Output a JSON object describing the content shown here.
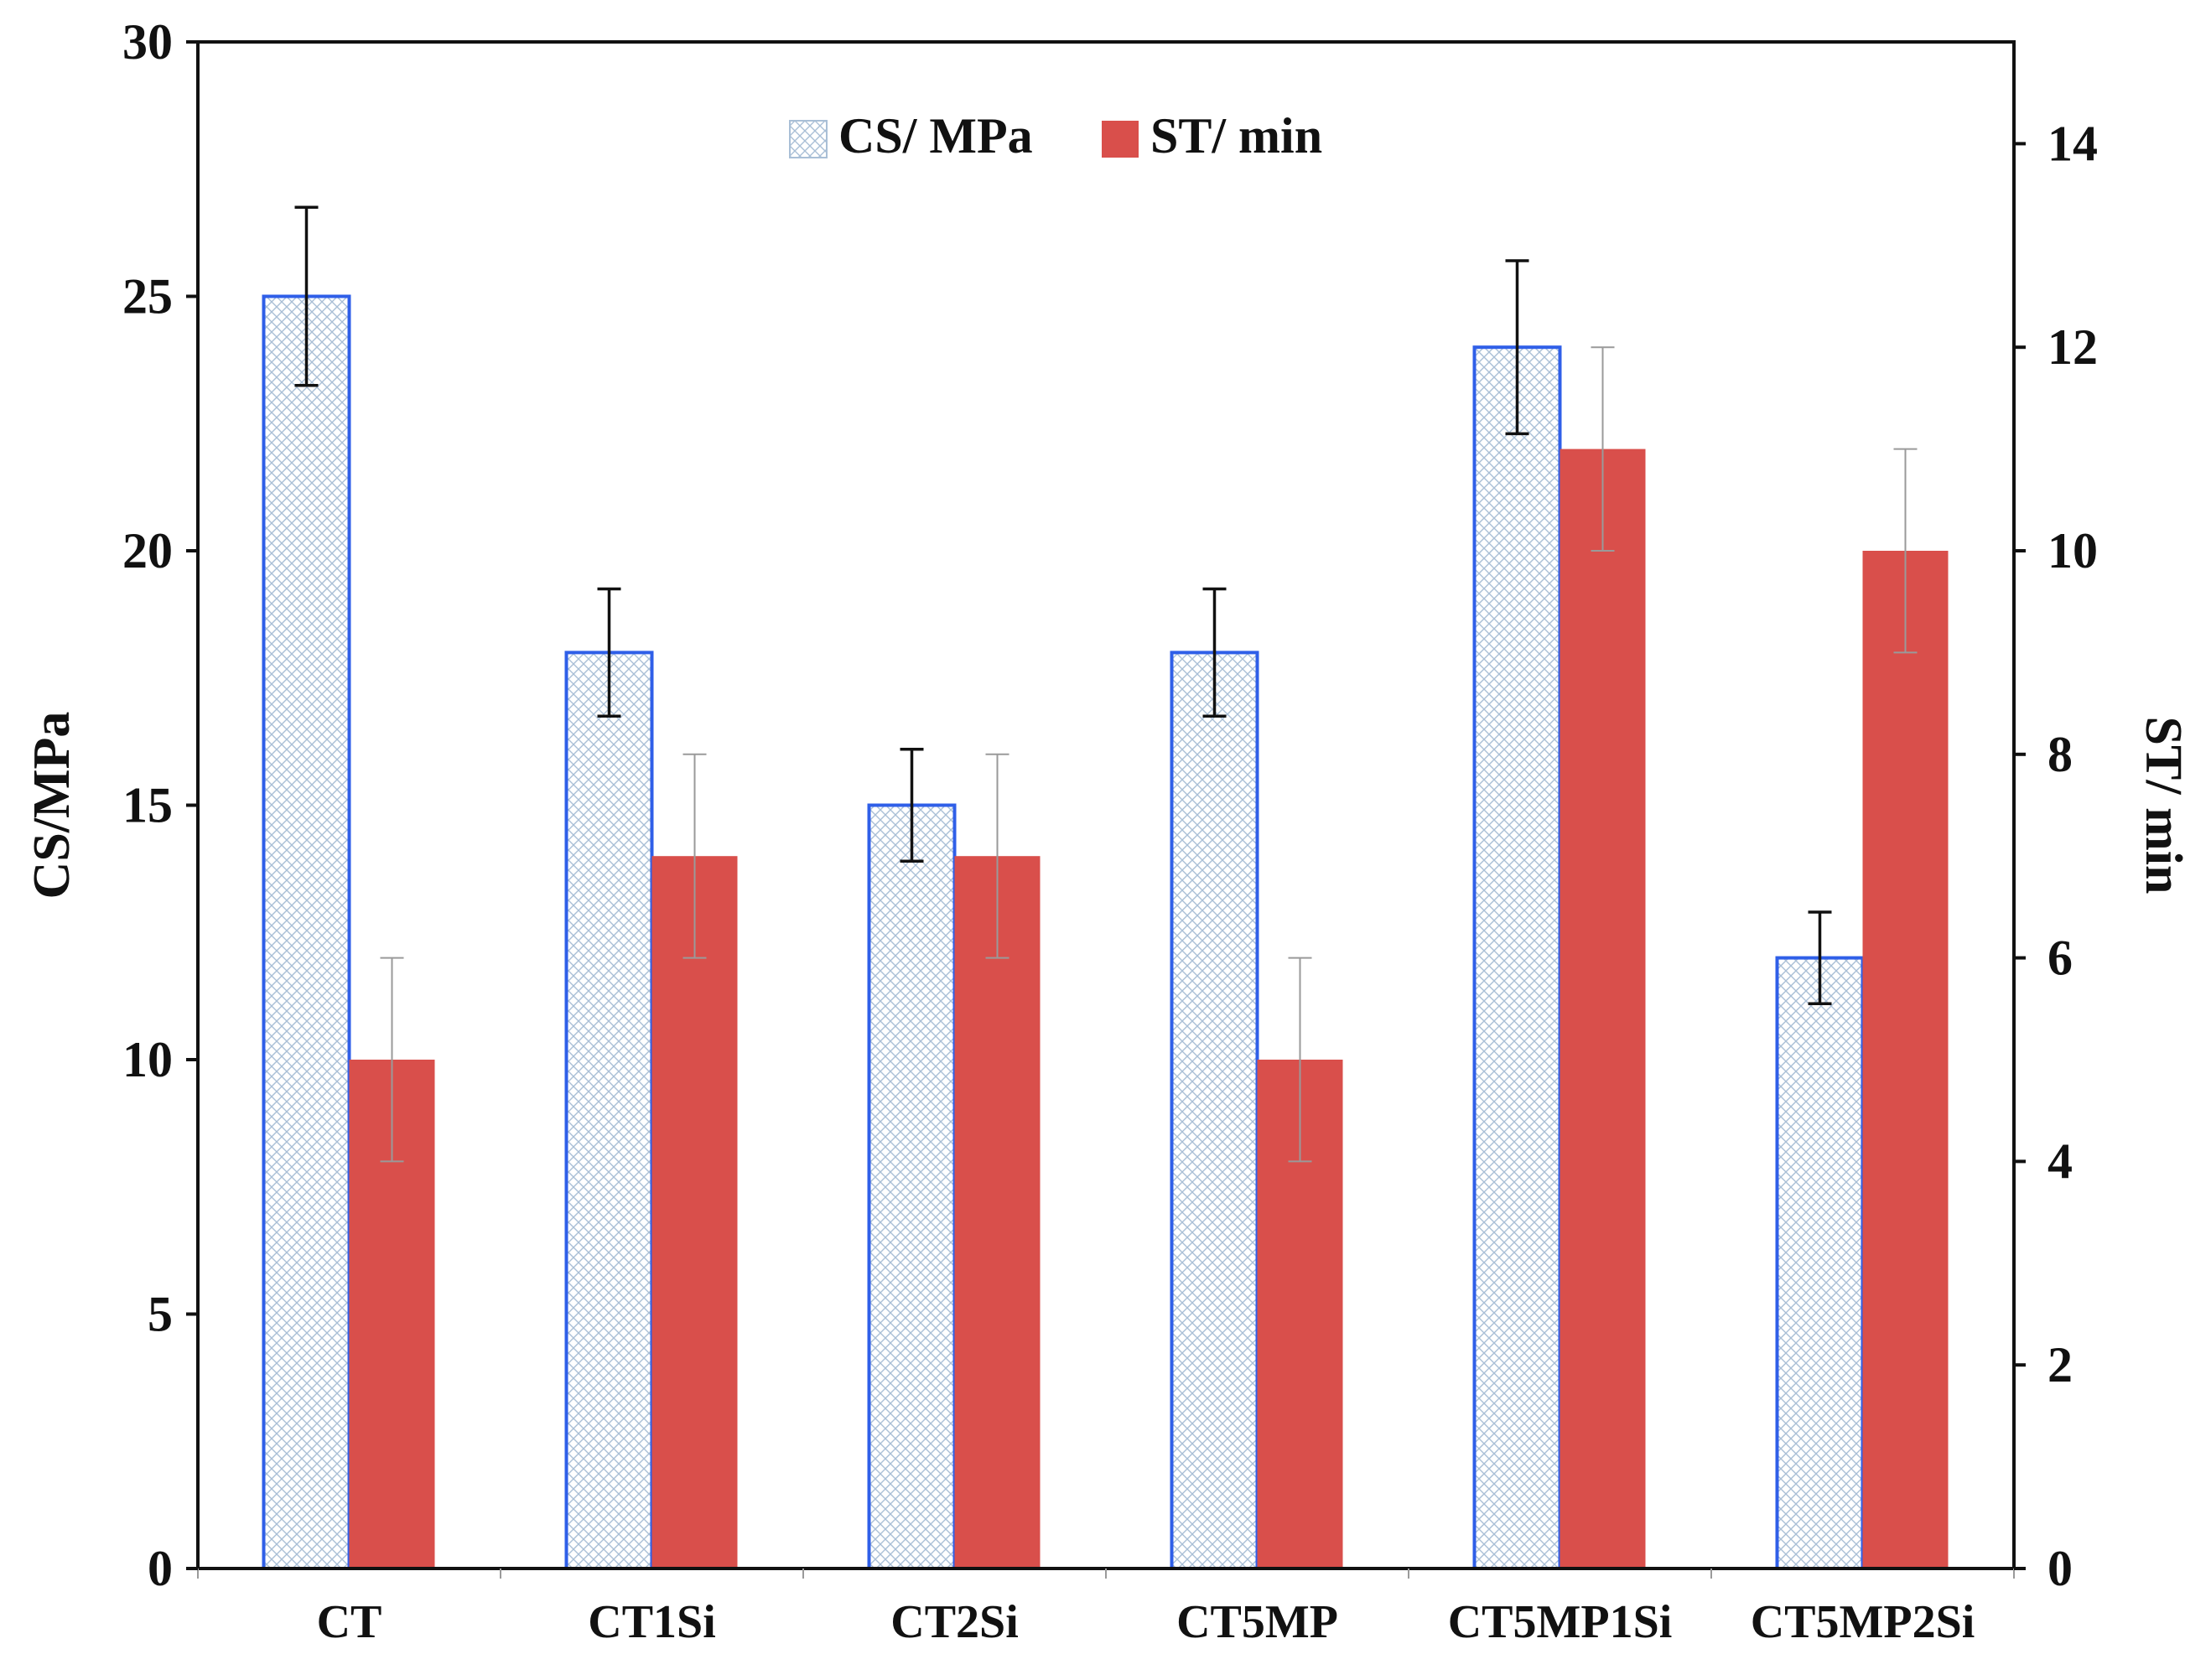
{
  "chart_data": {
    "type": "bar",
    "categories": [
      "CT",
      "CT1Si",
      "CT2Si",
      "CT5MP",
      "CT5MP1Si",
      "CT5MP2Si"
    ],
    "series": [
      {
        "name": "CS/ MPa",
        "axis": "left",
        "values": [
          25,
          18,
          15,
          18,
          24,
          12
        ],
        "errors": [
          1.75,
          1.25,
          1.1,
          1.25,
          1.7,
          0.9
        ],
        "fill": "#ffffff",
        "hatch_color": "#a9bfd6",
        "edge_color": "#2f5fe8",
        "error_color": "#111111"
      },
      {
        "name": "ST/ min",
        "axis": "right",
        "values": [
          5,
          7,
          7,
          5,
          11,
          10
        ],
        "errors": [
          1,
          1,
          1,
          1,
          1,
          1
        ],
        "fill": "#d94f4b",
        "edge_color": "#d94f4b",
        "error_color": "#9a9a9a"
      }
    ],
    "ylabel": "CS/MPa",
    "y2label": "ST/ min",
    "ylim": [
      0,
      30
    ],
    "y2lim": [
      0,
      15
    ],
    "yticks": [
      0,
      5,
      10,
      15,
      20,
      25,
      30
    ],
    "y2ticks": [
      0,
      2,
      4,
      6,
      8,
      10,
      12,
      14
    ],
    "legend_position": "top-center",
    "grid": false
  }
}
